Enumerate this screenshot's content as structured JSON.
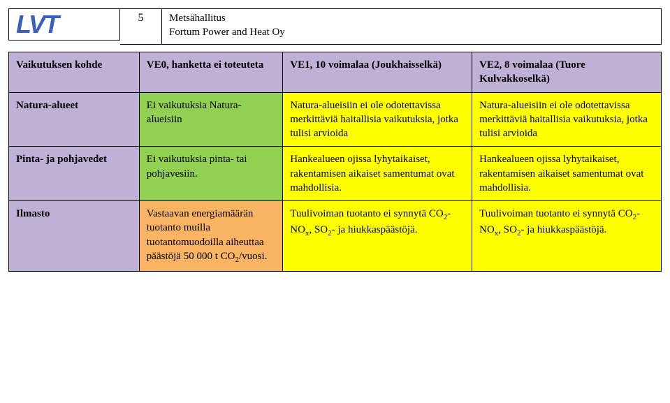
{
  "header": {
    "logo_text": "LVT",
    "page_number": "5",
    "org_line1": "Metsähallitus",
    "org_line2": "Fortum Power and Heat Oy"
  },
  "colors": {
    "header_bg": "#bfb1d6",
    "ve0_bg": "#91d051",
    "ve0_ilmasto_bg": "#f8b463",
    "ve1_bg": "#ffff00",
    "ve2_bg": "#ffff00",
    "logo_color": "#3b5fbf"
  },
  "table": {
    "head": {
      "c0": "Vaikutuksen kohde",
      "c1": "VE0, hanketta ei toteuteta",
      "c2": "VE1, 10 voimalaa (Joukhaisselkä)",
      "c3": "VE2, 8 voimalaa (Tuore Kulvakkoselkä)"
    },
    "rows": [
      {
        "key": "Natura-alueet",
        "ve0": "Ei vaikutuksia Natura-alueisiin",
        "ve1": "Natura-alueisiin ei ole odotettavissa merkittäviä haitallisia vaikutuksia, jotka tulisi arvioida",
        "ve2": "Natura-alueisiin ei ole odotettavissa merkittäviä haitallisia vaikutuksia, jotka tulisi arvioida"
      },
      {
        "key": "Pinta- ja pohjavedet",
        "ve0": "Ei vaikutuksia pinta- tai pohjavesiin.",
        "ve1": "Hankealueen ojissa lyhytaikaiset, rakentamisen aikaiset samentumat ovat mahdollisia.",
        "ve2": "Hankealueen ojissa lyhytaikaiset, rakentamisen aikaiset samentumat ovat mahdollisia."
      },
      {
        "key": "Ilmasto",
        "ve0_pre": "Vastaavan energiamäärän tuotanto muilla tuotantomuodoilla aiheuttaa päästöjä 50 000 t CO",
        "ve0_sub": "2",
        "ve0_post": "/vuosi.",
        "ve1_pre": "Tuulivoiman tuotanto ei synnytä CO",
        "ve1_mid1": "- NO",
        "ve1_subx": "x",
        "ve1_mid2": ", SO",
        "ve1_post": "- ja hiukkaspäästöjä.",
        "ve2_pre": "Tuulivoiman tuotanto ei synnytä CO",
        "ve2_mid1": "- NO",
        "ve2_subx": "x",
        "ve2_mid2": ", SO",
        "ve2_post": "- ja hiukkaspäästöjä."
      }
    ]
  }
}
